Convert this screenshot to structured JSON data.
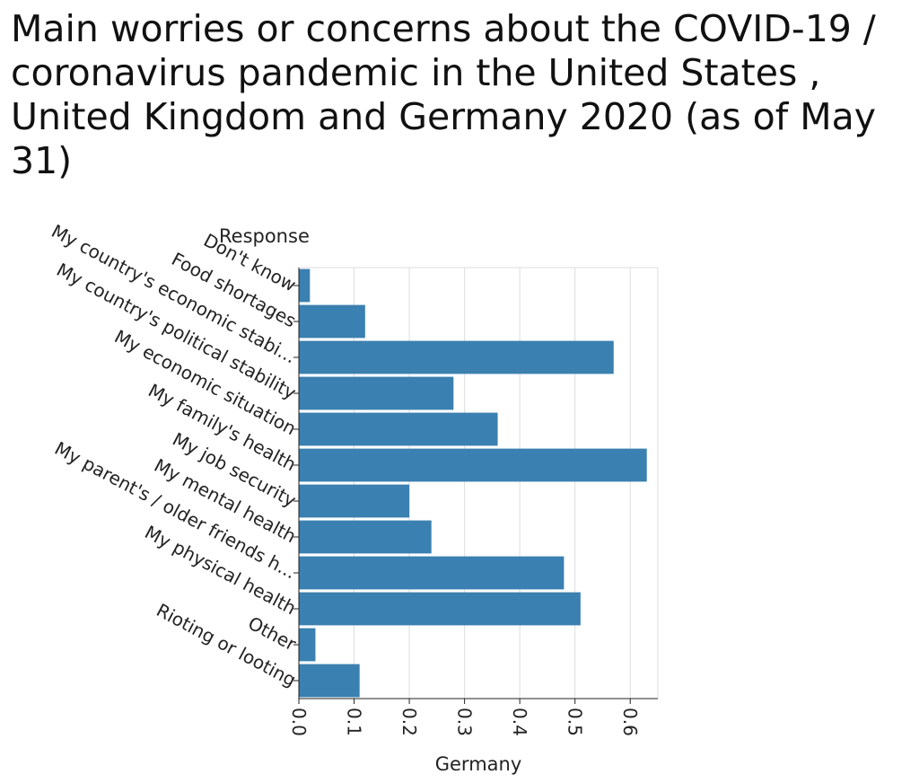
{
  "chart_data": {
    "type": "bar",
    "orientation": "horizontal",
    "title": "Main worries or concerns about the COVID-19 / coronavirus pandemic in the United States , United Kingdom and Germany 2020 (as of May 31)",
    "xlabel": "Germany",
    "ylabel": "Response",
    "xlim": [
      0,
      0.65
    ],
    "xticks": [
      "0.0",
      "0.1",
      "0.2",
      "0.3",
      "0.4",
      "0.5",
      "0.6"
    ],
    "grid": true,
    "categories": [
      "Don't know",
      "Food shortages",
      "My country's economic stabi...",
      "My country's political stability",
      "My economic situation",
      "My family's health",
      "My job security",
      "My mental health",
      "My parent's / older friends h...",
      "My physical health",
      "Other",
      "Rioting or looting"
    ],
    "values": [
      0.02,
      0.12,
      0.57,
      0.28,
      0.36,
      0.63,
      0.2,
      0.24,
      0.48,
      0.51,
      0.03,
      0.11
    ],
    "bar_color": "#3a80b0"
  }
}
